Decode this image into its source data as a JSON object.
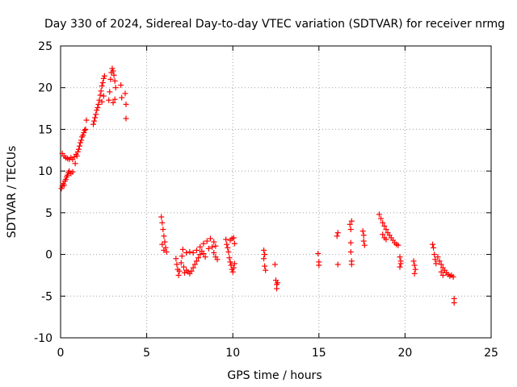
{
  "chart_data": {
    "type": "scatter",
    "title": "Day 330 of 2024, Sidereal Day-to-day VTEC variation (SDTVAR) for receiver nrmg",
    "xlabel": "GPS time / hours",
    "ylabel": "SDTVAR / TECUs",
    "xlim": [
      0,
      25
    ],
    "ylim": [
      -10,
      25
    ],
    "xticks": [
      0,
      5,
      10,
      15,
      20,
      25
    ],
    "yticks": [
      -10,
      -5,
      0,
      5,
      10,
      15,
      20,
      25
    ],
    "xtick_labels": [
      "0",
      "5",
      "10",
      "15",
      "20",
      "25"
    ],
    "ytick_labels": [
      "-10",
      "-5",
      "0",
      "5",
      "10",
      "15",
      "20",
      "25"
    ],
    "grid": true,
    "marker": "+",
    "marker_color": "#ff0000",
    "series": [
      {
        "name": "SDTVAR",
        "points": [
          [
            0.05,
            7.9
          ],
          [
            0.1,
            8.2
          ],
          [
            0.15,
            8.5
          ],
          [
            0.2,
            8.3
          ],
          [
            0.25,
            8.8
          ],
          [
            0.3,
            9.0
          ],
          [
            0.35,
            9.3
          ],
          [
            0.4,
            9.5
          ],
          [
            0.45,
            9.8
          ],
          [
            0.5,
            10.0
          ],
          [
            0.6,
            9.7
          ],
          [
            0.7,
            9.9
          ],
          [
            0.1,
            12.1
          ],
          [
            0.2,
            11.8
          ],
          [
            0.3,
            11.6
          ],
          [
            0.4,
            11.5
          ],
          [
            0.5,
            11.4
          ],
          [
            0.6,
            11.6
          ],
          [
            0.7,
            11.4
          ],
          [
            0.8,
            11.7
          ],
          [
            0.9,
            12.0
          ],
          [
            0.85,
            10.9
          ],
          [
            0.95,
            11.8
          ],
          [
            1.0,
            12.3
          ],
          [
            1.05,
            12.6
          ],
          [
            1.1,
            13.0
          ],
          [
            1.15,
            13.4
          ],
          [
            1.2,
            13.7
          ],
          [
            1.25,
            14.1
          ],
          [
            1.3,
            14.3
          ],
          [
            1.35,
            14.6
          ],
          [
            1.4,
            14.9
          ],
          [
            1.45,
            15.0
          ],
          [
            1.5,
            16.1
          ],
          [
            1.9,
            15.6
          ],
          [
            1.95,
            16.0
          ],
          [
            2.0,
            16.4
          ],
          [
            2.05,
            16.8
          ],
          [
            2.1,
            17.3
          ],
          [
            2.15,
            17.6
          ],
          [
            2.2,
            18.0
          ],
          [
            2.25,
            18.5
          ],
          [
            2.3,
            19.1
          ],
          [
            2.35,
            19.6
          ],
          [
            2.4,
            20.2
          ],
          [
            2.45,
            20.6
          ],
          [
            2.5,
            21.1
          ],
          [
            2.55,
            21.4
          ],
          [
            2.4,
            18.3
          ],
          [
            2.5,
            19.0
          ],
          [
            2.8,
            18.5
          ],
          [
            2.85,
            19.5
          ],
          [
            2.9,
            21.0
          ],
          [
            2.95,
            21.8
          ],
          [
            3.0,
            22.3
          ],
          [
            3.05,
            22.0
          ],
          [
            3.1,
            21.5
          ],
          [
            3.15,
            20.8
          ],
          [
            3.2,
            20.0
          ],
          [
            3.05,
            18.2
          ],
          [
            3.15,
            18.6
          ],
          [
            3.5,
            20.3
          ],
          [
            3.55,
            18.8
          ],
          [
            3.75,
            19.3
          ],
          [
            3.8,
            18.0
          ],
          [
            3.8,
            16.3
          ],
          [
            5.85,
            4.5
          ],
          [
            5.9,
            3.8
          ],
          [
            5.95,
            3.0
          ],
          [
            6.0,
            2.2
          ],
          [
            6.05,
            1.5
          ],
          [
            6.1,
            0.8
          ],
          [
            6.15,
            0.3
          ],
          [
            5.9,
            1.2
          ],
          [
            6.0,
            0.5
          ],
          [
            6.7,
            -0.5
          ],
          [
            6.75,
            -1.2
          ],
          [
            6.8,
            -1.8
          ],
          [
            6.85,
            -2.5
          ],
          [
            6.9,
            -2.0
          ],
          [
            7.0,
            -1.0
          ],
          [
            7.05,
            -0.2
          ],
          [
            7.1,
            0.6
          ],
          [
            7.15,
            -1.5
          ],
          [
            7.2,
            -2.2
          ],
          [
            7.3,
            -1.9
          ],
          [
            7.4,
            -2.1
          ],
          [
            7.5,
            -2.3
          ],
          [
            7.6,
            -2.0
          ],
          [
            7.7,
            -1.6
          ],
          [
            7.8,
            -1.2
          ],
          [
            7.9,
            -0.8
          ],
          [
            8.0,
            -0.4
          ],
          [
            8.1,
            0.0
          ],
          [
            8.2,
            0.4
          ],
          [
            8.3,
            0.1
          ],
          [
            8.4,
            -0.3
          ],
          [
            7.3,
            0.2
          ],
          [
            7.5,
            0.3
          ],
          [
            7.7,
            0.2
          ],
          [
            7.9,
            0.5
          ],
          [
            8.1,
            0.9
          ],
          [
            8.3,
            1.3
          ],
          [
            8.5,
            1.6
          ],
          [
            8.7,
            1.9
          ],
          [
            8.9,
            1.5
          ],
          [
            9.0,
            1.0
          ],
          [
            8.6,
            0.7
          ],
          [
            8.8,
            0.9
          ],
          [
            8.9,
            0.2
          ],
          [
            9.0,
            -0.3
          ],
          [
            9.1,
            -0.6
          ],
          [
            9.6,
            1.8
          ],
          [
            9.65,
            1.2
          ],
          [
            9.7,
            0.8
          ],
          [
            9.75,
            0.3
          ],
          [
            9.8,
            -0.4
          ],
          [
            9.85,
            -0.9
          ],
          [
            9.9,
            -1.3
          ],
          [
            9.95,
            -1.8
          ],
          [
            10.0,
            -2.1
          ],
          [
            10.05,
            -1.6
          ],
          [
            10.1,
            -1.1
          ],
          [
            9.85,
            1.7
          ],
          [
            9.95,
            1.9
          ],
          [
            10.05,
            2.0
          ],
          [
            10.1,
            1.3
          ],
          [
            11.8,
            0.5
          ],
          [
            11.85,
            0.0
          ],
          [
            11.8,
            -0.5
          ],
          [
            11.85,
            -1.4
          ],
          [
            11.9,
            -1.9
          ],
          [
            12.45,
            -1.2
          ],
          [
            12.5,
            -3.1
          ],
          [
            12.55,
            -3.6
          ],
          [
            12.55,
            -4.1
          ],
          [
            12.6,
            -3.4
          ],
          [
            14.95,
            0.1
          ],
          [
            15.0,
            -0.9
          ],
          [
            15.0,
            -1.3
          ],
          [
            16.05,
            2.2
          ],
          [
            16.1,
            2.6
          ],
          [
            16.1,
            -1.2
          ],
          [
            16.8,
            3.6
          ],
          [
            16.85,
            3.0
          ],
          [
            16.9,
            4.0
          ],
          [
            16.85,
            1.4
          ],
          [
            16.85,
            0.3
          ],
          [
            16.9,
            -0.8
          ],
          [
            16.9,
            -1.2
          ],
          [
            17.55,
            2.8
          ],
          [
            17.6,
            2.3
          ],
          [
            17.6,
            1.6
          ],
          [
            17.65,
            1.1
          ],
          [
            18.5,
            4.8
          ],
          [
            18.6,
            4.3
          ],
          [
            18.7,
            3.8
          ],
          [
            18.8,
            3.4
          ],
          [
            18.9,
            3.0
          ],
          [
            19.0,
            2.6
          ],
          [
            19.1,
            2.3
          ],
          [
            19.2,
            2.0
          ],
          [
            19.3,
            1.7
          ],
          [
            19.4,
            1.4
          ],
          [
            19.5,
            1.2
          ],
          [
            18.7,
            2.4
          ],
          [
            18.8,
            2.0
          ],
          [
            18.9,
            1.8
          ],
          [
            19.6,
            1.1
          ],
          [
            19.7,
            -0.3
          ],
          [
            19.75,
            -0.8
          ],
          [
            19.75,
            -1.1
          ],
          [
            19.7,
            -1.5
          ],
          [
            20.5,
            -0.8
          ],
          [
            20.55,
            -1.3
          ],
          [
            20.6,
            -1.8
          ],
          [
            20.55,
            -2.3
          ],
          [
            21.6,
            1.2
          ],
          [
            21.65,
            0.8
          ],
          [
            21.7,
            0.0
          ],
          [
            21.75,
            -0.6
          ],
          [
            21.8,
            -1.1
          ],
          [
            21.9,
            -0.3
          ],
          [
            22.0,
            -0.8
          ],
          [
            22.1,
            -1.2
          ],
          [
            22.2,
            -1.6
          ],
          [
            22.3,
            -1.9
          ],
          [
            22.4,
            -2.2
          ],
          [
            22.5,
            -2.4
          ],
          [
            22.6,
            -2.6
          ],
          [
            22.7,
            -2.5
          ],
          [
            22.8,
            -2.7
          ],
          [
            22.1,
            -2.1
          ],
          [
            22.2,
            -2.5
          ],
          [
            22.85,
            -5.3
          ],
          [
            22.85,
            -5.8
          ]
        ]
      }
    ]
  }
}
